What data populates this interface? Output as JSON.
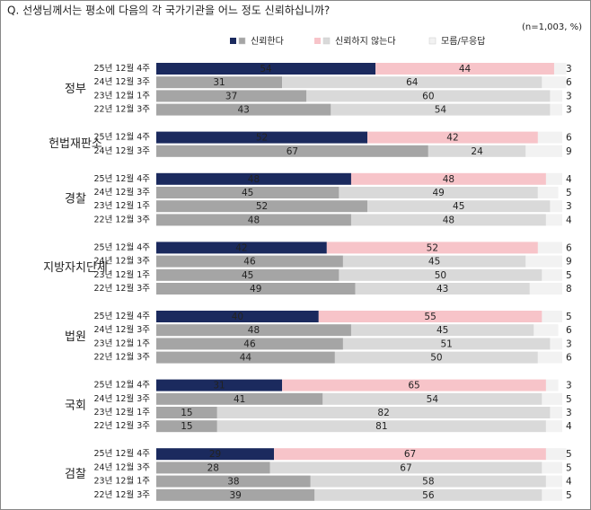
{
  "chart_data": {
    "type": "bar",
    "orientation": "horizontal",
    "stacked": true,
    "title": "Q. 선생님께서는 평소에 다음의 각 국가기관을 어느 정도 신뢰하십니까?",
    "note": "(n=1,003, %)",
    "xlim": [
      0,
      100
    ],
    "series": [
      {
        "name": "신뢰한다",
        "color": "#1b2a5e",
        "past_color": "#a5a5a5"
      },
      {
        "name": "신뢰하지 않는다",
        "color": "#f7c4c9",
        "past_color": "#d9d9d9"
      },
      {
        "name": "모름/무응답",
        "color": "#f2f2f2",
        "past_color": "#f2f2f2"
      }
    ],
    "groups": [
      {
        "name": "정부",
        "categories": [
          "25년 12월 4주",
          "24년 12월 3주",
          "23년 12월 1주",
          "22년 12월 3주"
        ],
        "values": [
          [
            54,
            44,
            3
          ],
          [
            31,
            64,
            6
          ],
          [
            37,
            60,
            3
          ],
          [
            43,
            54,
            3
          ]
        ]
      },
      {
        "name": "헌법재판소",
        "categories": [
          "25년 12월 4주",
          "24년 12월 3주"
        ],
        "values": [
          [
            52,
            42,
            6
          ],
          [
            67,
            24,
            9
          ]
        ]
      },
      {
        "name": "경찰",
        "categories": [
          "25년 12월 4주",
          "24년 12월 3주",
          "23년 12월 1주",
          "22년 12월 3주"
        ],
        "values": [
          [
            48,
            48,
            4
          ],
          [
            45,
            49,
            5
          ],
          [
            52,
            45,
            3
          ],
          [
            48,
            48,
            4
          ]
        ]
      },
      {
        "name": "지방자치단체",
        "categories": [
          "25년 12월 4주",
          "24년 12월 3주",
          "23년 12월 1주",
          "22년 12월 3주"
        ],
        "values": [
          [
            42,
            52,
            6
          ],
          [
            46,
            45,
            9
          ],
          [
            45,
            50,
            5
          ],
          [
            49,
            43,
            8
          ]
        ]
      },
      {
        "name": "법원",
        "categories": [
          "25년 12월 4주",
          "24년 12월 3주",
          "23년 12월 1주",
          "22년 12월 3주"
        ],
        "values": [
          [
            40,
            55,
            5
          ],
          [
            48,
            45,
            6
          ],
          [
            46,
            51,
            3
          ],
          [
            44,
            50,
            6
          ]
        ]
      },
      {
        "name": "국회",
        "categories": [
          "25년 12월 4주",
          "24년 12월 3주",
          "23년 12월 1주",
          "22년 12월 3주"
        ],
        "values": [
          [
            31,
            65,
            3
          ],
          [
            41,
            54,
            5
          ],
          [
            15,
            82,
            3
          ],
          [
            15,
            81,
            4
          ]
        ]
      },
      {
        "name": "검찰",
        "categories": [
          "25년 12월 4주",
          "24년 12월 3주",
          "23년 12월 1주",
          "22년 12월 3주"
        ],
        "values": [
          [
            29,
            67,
            5
          ],
          [
            28,
            67,
            5
          ],
          [
            38,
            58,
            4
          ],
          [
            39,
            56,
            5
          ]
        ]
      }
    ]
  }
}
